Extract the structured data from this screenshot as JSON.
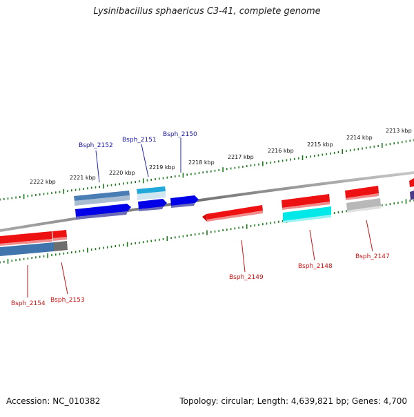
{
  "title": "Lysinibacillus sphaericus C3-41, complete genome",
  "accession": "Accession: NC_010382",
  "topology": "Topology: circular; Length: 4,639,821 bp; Genes: 4,700",
  "colors": {
    "backbone": "#8a8a8a",
    "tick": "#1a7a1a",
    "upper_label": "#1a1aa8",
    "lower_label": "#cc1111"
  },
  "scale_labels": [
    "2222 kbp",
    "2221 kbp",
    "2220 kbp",
    "2219 kbp",
    "2218 kbp",
    "2217 kbp",
    "2216 kbp",
    "2215 kbp",
    "2214 kbp",
    "2213 kbp"
  ],
  "upper_genes": [
    "Bsph_2152",
    "Bsph_2151",
    "Bsph_2150"
  ],
  "lower_genes": [
    "Bsph_2154",
    "Bsph_2153",
    "Bsph_2149",
    "Bsph_2148",
    "Bsph_2147"
  ]
}
